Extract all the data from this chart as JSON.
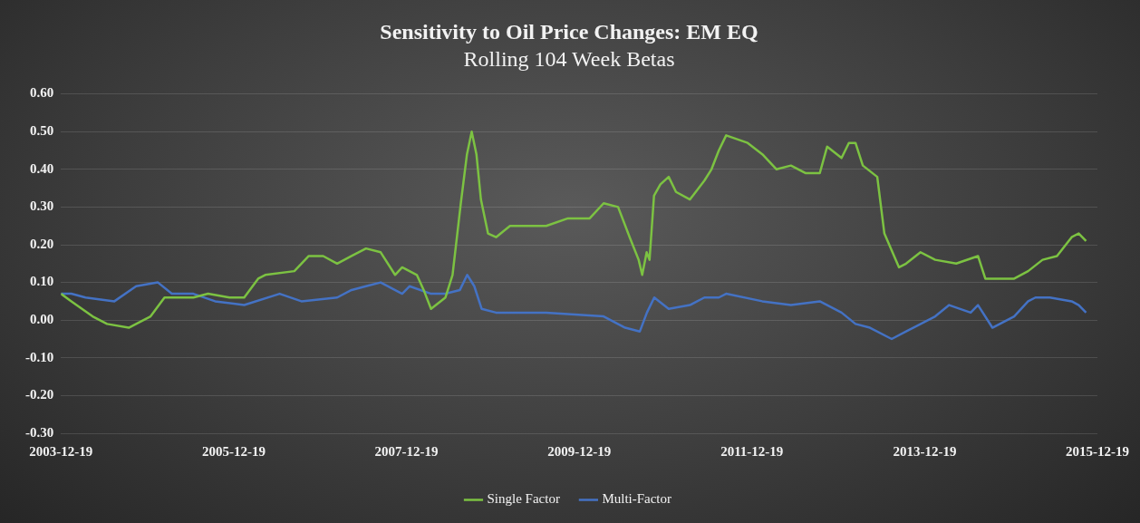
{
  "chart_data": {
    "type": "line",
    "title": "Sensitivity to Oil Price Changes: EM EQ",
    "subtitle": "Rolling 104 Week Betas",
    "xlim": [
      "2003-12-19",
      "2015-12-19"
    ],
    "xticks": [
      "2003-12-19",
      "2005-12-19",
      "2007-12-19",
      "2009-12-19",
      "2011-12-19",
      "2013-12-19",
      "2015-12-19"
    ],
    "ylim": [
      -0.3,
      0.6
    ],
    "yticks": [
      {
        "value": -0.3,
        "label": "-0.30"
      },
      {
        "value": -0.2,
        "label": "-0.20"
      },
      {
        "value": -0.1,
        "label": "-0.10"
      },
      {
        "value": 0,
        "label": "0.00"
      },
      {
        "value": 0.1,
        "label": "0.10"
      },
      {
        "value": 0.2,
        "label": "0.20"
      },
      {
        "value": 0.3,
        "label": "0.30"
      },
      {
        "value": 0.4,
        "label": "0.40"
      },
      {
        "value": 0.5,
        "label": "0.50"
      },
      {
        "value": 0.6,
        "label": "0.60"
      }
    ],
    "grid": "y",
    "legend": "bottom",
    "marker": "none",
    "line_style": "solid",
    "series": [
      {
        "name": "Single Factor",
        "color": "#7cc242",
        "x": [
          "2003-12-19",
          "2004-02",
          "2004-05",
          "2004-07",
          "2004-10",
          "2004-11",
          "2005-01",
          "2005-03",
          "2005-04",
          "2005-07",
          "2005-09",
          "2005-12",
          "2006-02",
          "2006-04",
          "2006-05",
          "2006-09",
          "2006-11",
          "2007-01",
          "2007-03",
          "2007-05",
          "2007-07",
          "2007-09",
          "2007-11",
          "2007-12",
          "2008-02",
          "2008-03",
          "2008-04",
          "2008-06",
          "2008-07",
          "2008-08-05",
          "2008-08-31",
          "2008-09-20",
          "2008-10-10",
          "2008-10-29",
          "2008-11-28",
          "2009-01",
          "2009-03",
          "2009-06",
          "2009-08",
          "2009-11",
          "2010-02",
          "2010-04",
          "2010-06",
          "2010-07-20",
          "2010-08-27",
          "2010-09-11",
          "2010-09-30",
          "2010-10-12",
          "2010-10-31",
          "2010-11-27",
          "2011-01",
          "2011-02",
          "2011-04",
          "2011-06",
          "2011-07",
          "2011-08",
          "2011-09",
          "2011-12",
          "2012-02",
          "2012-04",
          "2012-06",
          "2012-08",
          "2012-10",
          "2012-11",
          "2013-01",
          "2013-02",
          "2013-03",
          "2013-04",
          "2013-06",
          "2013-07",
          "2013-09",
          "2013-10",
          "2013-12",
          "2014-02",
          "2014-05",
          "2014-08",
          "2014-09",
          "2014-11",
          "2015-01",
          "2015-03",
          "2015-05",
          "2015-07",
          "2015-09",
          "2015-10",
          "2015-11"
        ],
        "values": [
          0.07,
          0.05,
          0.01,
          -0.01,
          -0.02,
          -0.01,
          0.01,
          0.06,
          0.06,
          0.06,
          0.07,
          0.06,
          0.06,
          0.11,
          0.12,
          0.13,
          0.17,
          0.17,
          0.15,
          0.17,
          0.19,
          0.18,
          0.12,
          0.14,
          0.12,
          0.08,
          0.03,
          0.06,
          0.12,
          0.31,
          0.44,
          0.5,
          0.44,
          0.32,
          0.23,
          0.22,
          0.25,
          0.25,
          0.25,
          0.27,
          0.27,
          0.31,
          0.3,
          0.22,
          0.16,
          0.12,
          0.18,
          0.16,
          0.33,
          0.36,
          0.38,
          0.34,
          0.32,
          0.37,
          0.4,
          0.45,
          0.49,
          0.47,
          0.44,
          0.4,
          0.41,
          0.39,
          0.39,
          0.46,
          0.43,
          0.47,
          0.47,
          0.41,
          0.38,
          0.23,
          0.14,
          0.15,
          0.18,
          0.16,
          0.15,
          0.17,
          0.11,
          0.11,
          0.11,
          0.13,
          0.16,
          0.17,
          0.22,
          0.23,
          0.21
        ]
      },
      {
        "name": "Multi-Factor",
        "color": "#4472c4",
        "x": [
          "2003-12-19",
          "2004-02",
          "2004-04",
          "2004-08",
          "2004-11",
          "2005-02",
          "2005-04",
          "2005-07",
          "2005-10",
          "2006-02",
          "2006-07",
          "2006-10",
          "2007-03",
          "2007-05",
          "2007-07",
          "2007-09",
          "2007-12",
          "2008-01",
          "2008-04",
          "2008-06",
          "2008-08",
          "2008-09",
          "2008-10",
          "2008-11",
          "2009-01",
          "2009-08",
          "2010-04",
          "2010-07",
          "2010-09",
          "2010-10",
          "2010-11",
          "2011-01",
          "2011-04",
          "2011-06",
          "2011-08",
          "2011-09",
          "2012-02",
          "2012-06",
          "2012-10",
          "2013-01",
          "2013-03",
          "2013-05",
          "2013-08",
          "2013-10",
          "2014-02",
          "2014-04",
          "2014-07",
          "2014-08",
          "2014-10",
          "2015-01",
          "2015-03",
          "2015-04",
          "2015-06",
          "2015-09",
          "2015-10",
          "2015-11"
        ],
        "values": [
          0.07,
          0.07,
          0.06,
          0.05,
          0.09,
          0.1,
          0.07,
          0.07,
          0.05,
          0.04,
          0.07,
          0.05,
          0.06,
          0.08,
          0.09,
          0.1,
          0.07,
          0.09,
          0.07,
          0.07,
          0.08,
          0.12,
          0.09,
          0.03,
          0.02,
          0.02,
          0.01,
          -0.02,
          -0.03,
          0.02,
          0.06,
          0.03,
          0.04,
          0.06,
          0.06,
          0.07,
          0.05,
          0.04,
          0.05,
          0.02,
          -0.01,
          -0.02,
          -0.05,
          -0.03,
          0.01,
          0.04,
          0.02,
          0.04,
          -0.02,
          0.01,
          0.05,
          0.06,
          0.06,
          0.05,
          0.04,
          0.02
        ]
      }
    ]
  }
}
